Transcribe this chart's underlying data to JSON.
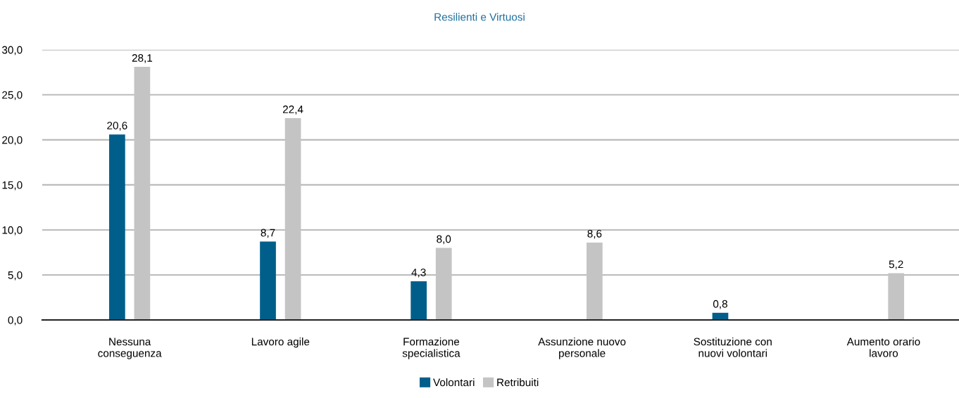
{
  "chart_data": {
    "type": "bar",
    "title": "Resilienti e Virtuosi",
    "categories": [
      "Nessuna\nconseguenza",
      "Lavoro agile",
      "Formazione\nspecialistica",
      "Assunzione nuovo\npersonale",
      "Sostituzione con\nnuovi volontari",
      "Aumento orario\nlavoro"
    ],
    "series": [
      {
        "name": "Volontari",
        "color": "#005f8a",
        "values": [
          20.6,
          8.7,
          4.3,
          null,
          0.8,
          null
        ],
        "value_labels": [
          "20,6",
          "8,7",
          "4,3",
          null,
          "0,8",
          null
        ]
      },
      {
        "name": "Retribuiti",
        "color": "#c4c4c4",
        "values": [
          28.1,
          22.4,
          8.0,
          8.6,
          null,
          5.2
        ],
        "value_labels": [
          "28,1",
          "22,4",
          "8,0",
          "8,6",
          null,
          "5,2"
        ]
      }
    ],
    "ylim": [
      0,
      30
    ],
    "yticks": [
      {
        "value": 0,
        "label": "0,0"
      },
      {
        "value": 5,
        "label": "5,0"
      },
      {
        "value": 10,
        "label": "10,0"
      },
      {
        "value": 15,
        "label": "15,0"
      },
      {
        "value": 20,
        "label": "20,0"
      },
      {
        "value": 25,
        "label": "25,0"
      },
      {
        "value": 30,
        "label": "30,0"
      }
    ],
    "grid": "y",
    "legend": "bottom"
  }
}
